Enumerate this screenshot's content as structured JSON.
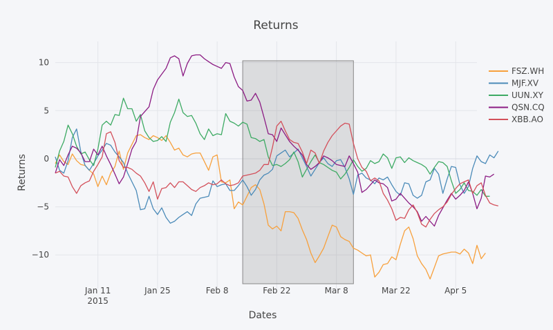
{
  "chart_data": {
    "type": "line",
    "title": "Returns",
    "xlabel": "Dates",
    "ylabel": "Returns",
    "x_start": "2015-01-01",
    "x_range": [
      "2015-01-01",
      "2015-04-10"
    ],
    "ylim": [
      -13.5,
      12.2
    ],
    "x_ticks": [
      {
        "date": "2015-01-11",
        "label": "Jan 11",
        "sub": "2015"
      },
      {
        "date": "2015-01-25",
        "label": "Jan 25",
        "sub": ""
      },
      {
        "date": "2015-02-08",
        "label": "Feb 8",
        "sub": ""
      },
      {
        "date": "2015-02-22",
        "label": "Feb 22",
        "sub": ""
      },
      {
        "date": "2015-03-08",
        "label": "Mar 8",
        "sub": ""
      },
      {
        "date": "2015-03-22",
        "label": "Mar 22",
        "sub": ""
      },
      {
        "date": "2015-04-05",
        "label": "Apr 5",
        "sub": ""
      }
    ],
    "y_ticks": [
      10,
      5,
      0,
      -5,
      -10
    ],
    "grid": true,
    "legend_position": "top-right",
    "highlight_range": [
      "2015-02-14",
      "2015-03-12"
    ],
    "series": [
      {
        "name": "FSZ.WH",
        "color": "#f7a03c",
        "values": [
          -0.5,
          0.4,
          -0.3,
          -0.6,
          0.5,
          -0.2,
          -0.6,
          -0.7,
          -1.2,
          -1.6,
          -2.9,
          -1.8,
          -2.7,
          -1.5,
          -0.8,
          0.8,
          -1.1,
          0.6,
          1.5,
          2.4,
          2.5,
          2.2,
          2.0,
          2.4,
          2.2,
          1.9,
          2.4,
          1.7,
          0.9,
          1.1,
          0.4,
          0.2,
          0.5,
          0.6,
          0.6,
          -0.3,
          -1.2,
          0.2,
          0.4,
          -2.4,
          -2.5,
          -2.2,
          -5.2,
          -4.5,
          -4.8,
          -3.9,
          -3.0,
          -2.7,
          -3.2,
          -4.7,
          -6.9,
          -7.3,
          -7.0,
          -7.5,
          -5.5,
          -5.5,
          -5.6,
          -6.2,
          -7.4,
          -8.4,
          -9.8,
          -10.8,
          -10.1,
          -9.3,
          -8.1,
          -6.9,
          -7.1,
          -8.1,
          -8.4,
          -8.6,
          -9.3,
          -9.5,
          -9.8,
          -10.1,
          -10.0,
          -12.3,
          -11.8,
          -11.0,
          -10.9,
          -10.2,
          -10.5,
          -8.9,
          -7.5,
          -7.1,
          -8.3,
          -10.1,
          -10.9,
          -11.5,
          -12.5,
          -11.3,
          -10.1,
          -9.9,
          -9.8,
          -9.7,
          -9.7,
          -9.9,
          -9.4,
          -9.8,
          -10.9,
          -9.0,
          -10.4,
          -9.8
        ]
      },
      {
        "name": "MJF.XV",
        "color": "#4a8ab8",
        "values": [
          0.2,
          -1.2,
          -1.5,
          -0.2,
          2.2,
          3.1,
          0.7,
          -0.7,
          -1.2,
          -0.5,
          0.3,
          0.9,
          1.6,
          1.4,
          0.7,
          0.2,
          -0.4,
          -1.5,
          -2.4,
          -3.3,
          -5.3,
          -5.2,
          -3.9,
          -5.2,
          -5.8,
          -5.1,
          -6.1,
          -6.7,
          -6.5,
          -6.1,
          -5.8,
          -5.5,
          -5.9,
          -4.7,
          -4.1,
          -4.0,
          -3.9,
          -2.3,
          -2.9,
          -2.7,
          -2.6,
          -3.3,
          -3.3,
          -2.8,
          -2.2,
          -2.9,
          -3.8,
          -3.2,
          -2.2,
          -1.7,
          -1.5,
          -1.1,
          0.3,
          0.6,
          0.9,
          0.2,
          0.6,
          1.0,
          0.1,
          -0.8,
          -1.8,
          -1.1,
          -0.4,
          0.1,
          -0.5,
          -0.8,
          -0.2,
          -0.1,
          -0.9,
          -2.1,
          -3.7,
          -1.7,
          -1.5,
          -2.0,
          -2.2,
          -2.6,
          -2.0,
          -2.2,
          -1.9,
          -2.7,
          -3.4,
          -3.8,
          -2.5,
          -2.6,
          -3.8,
          -4.1,
          -3.8,
          -2.4,
          -2.2,
          -1.0,
          -1.6,
          -3.6,
          -2.1,
          -0.8,
          -0.9,
          -2.7,
          -3.6,
          -2.9,
          -1.0,
          0.3,
          -0.3,
          -0.5,
          0.4,
          0.1,
          0.8
        ]
      },
      {
        "name": "UUN.XY",
        "color": "#3daa63",
        "values": [
          -0.9,
          0.8,
          1.8,
          3.5,
          2.6,
          1.3,
          0.5,
          0.7,
          -0.1,
          -0.7,
          1.0,
          3.5,
          3.9,
          3.5,
          4.6,
          4.5,
          6.3,
          5.2,
          5.2,
          3.9,
          4.6,
          2.9,
          2.2,
          1.8,
          1.9,
          2.3,
          1.8,
          3.8,
          4.8,
          6.2,
          4.8,
          4.4,
          4.5,
          3.7,
          2.6,
          2.0,
          3.1,
          2.4,
          2.6,
          2.5,
          4.7,
          3.9,
          3.7,
          3.4,
          3.8,
          3.6,
          2.2,
          2.1,
          1.8,
          2.0,
          0.2,
          -0.7,
          -0.6,
          -0.8,
          -0.5,
          -0.1,
          0.7,
          -0.3,
          -1.9,
          -1.1,
          -0.3,
          0.4,
          -0.4,
          -0.6,
          -0.9,
          -1.2,
          -1.4,
          -2.1,
          -1.6,
          -0.9,
          -0.1,
          -0.8,
          -1.3,
          -1.0,
          -0.2,
          -0.5,
          -0.3,
          0.5,
          0.1,
          -1.0,
          0.1,
          0.2,
          -0.4,
          0.1,
          -0.2,
          -0.4,
          -0.6,
          -0.9,
          -1.6,
          -0.9,
          -0.3,
          -0.4,
          -0.8,
          -2.3,
          -3.6,
          -3.2,
          -2.5,
          -3.3,
          -3.4,
          -3.8,
          -3.2,
          -3.9,
          -3.9
        ]
      },
      {
        "name": "QSN.CQ",
        "color": "#8b1b83",
        "values": [
          -1.5,
          -0.1,
          -0.7,
          0.4,
          1.3,
          1.1,
          0.6,
          -0.3,
          -0.3,
          1.0,
          0.4,
          1.3,
          0.3,
          -0.6,
          -1.6,
          -2.6,
          -1.9,
          -0.5,
          1.0,
          1.8,
          4.4,
          4.9,
          5.4,
          7.2,
          8.2,
          8.8,
          9.4,
          10.5,
          10.7,
          10.4,
          8.6,
          9.9,
          10.7,
          10.8,
          10.8,
          10.4,
          10.1,
          9.8,
          9.6,
          9.4,
          10.0,
          9.9,
          8.5,
          7.5,
          7.1,
          6.0,
          6.1,
          6.8,
          5.9,
          4.3,
          2.6,
          2.5,
          1.8,
          3.2,
          2.5,
          1.8,
          1.3,
          0.9,
          0.4,
          -0.6,
          -1.1,
          -0.8,
          -0.4,
          0.3,
          0.1,
          -0.2,
          -0.6,
          -0.7,
          -0.8,
          0.3,
          -0.5,
          -1.4,
          -3.5,
          -3.2,
          -2.7,
          -2.2,
          -2.5,
          -2.6,
          -3.0,
          -4.4,
          -4.2,
          -3.6,
          -4.1,
          -4.6,
          -5.0,
          -5.5,
          -6.5,
          -6.0,
          -6.5,
          -7.0,
          -5.9,
          -5.1,
          -4.3,
          -3.6,
          -4.2,
          -3.8,
          -3.3,
          -2.4,
          -3.6,
          -5.2,
          -4.1,
          -1.8,
          -1.9,
          -1.6
        ]
      },
      {
        "name": "XBB.AO",
        "color": "#d34f5a",
        "values": [
          -1.5,
          -1.3,
          -1.8,
          -1.9,
          -2.9,
          -3.6,
          -2.8,
          -2.5,
          -2.3,
          -1.3,
          -0.6,
          0.2,
          2.6,
          2.8,
          1.7,
          -0.2,
          -0.9,
          -0.9,
          -1.1,
          -1.5,
          -1.8,
          -2.5,
          -3.4,
          -2.4,
          -4.2,
          -3.1,
          -3.0,
          -2.5,
          -3.0,
          -2.4,
          -2.4,
          -2.8,
          -3.2,
          -3.4,
          -3.0,
          -2.8,
          -2.5,
          -2.7,
          -2.6,
          -2.2,
          -2.6,
          -2.8,
          -2.7,
          -2.5,
          -1.8,
          -1.7,
          -1.6,
          -1.5,
          -1.2,
          -0.6,
          -0.6,
          1.2,
          3.4,
          3.9,
          2.9,
          2.0,
          1.7,
          1.6,
          0.7,
          -0.5,
          0.9,
          0.6,
          -0.5,
          0.8,
          1.7,
          2.4,
          2.9,
          3.4,
          3.7,
          3.6,
          1.6,
          0.0,
          -0.9,
          -1.3,
          -2.3,
          -2.0,
          -2.3,
          -3.6,
          -4.3,
          -5.2,
          -6.4,
          -6.1,
          -6.2,
          -5.3,
          -4.8,
          -5.6,
          -6.8,
          -7.1,
          -6.3,
          -5.7,
          -5.3,
          -5.0,
          -4.5,
          -3.7,
          -3.1,
          -2.6,
          -2.4,
          -2.2,
          -3.6,
          -2.8,
          -2.5,
          -3.8,
          -4.6,
          -4.8,
          -4.9
        ]
      }
    ]
  }
}
